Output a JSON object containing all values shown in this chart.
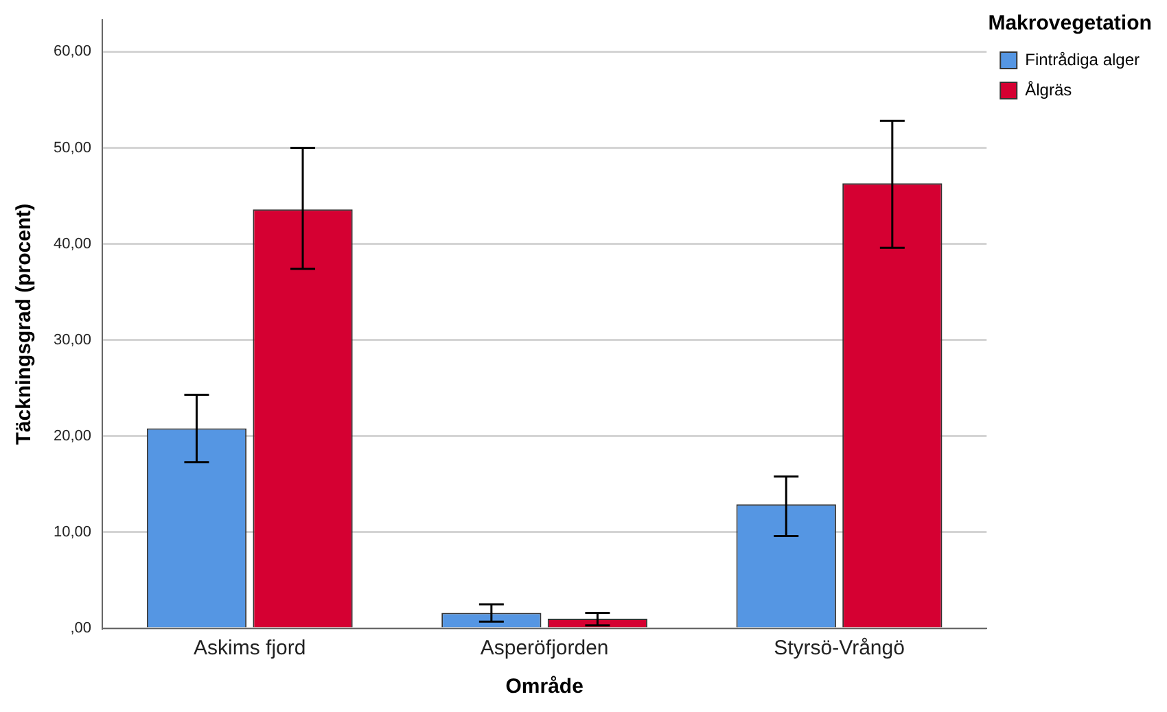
{
  "chart_data": {
    "type": "bar",
    "xlabel": "Område",
    "ylabel": "Täckningsgrad (procent)",
    "legend_title": "Makrovegetation",
    "categories": [
      "Askims fjord",
      "Asperöfjorden",
      "Styrsö-Vrångö"
    ],
    "series": [
      {
        "name": "Fintrådiga alger",
        "color": "#5596e3",
        "values": [
          20.8,
          1.6,
          12.9
        ],
        "errors": [
          [
            17.3,
            24.3
          ],
          [
            0.7,
            2.5
          ],
          [
            9.6,
            15.8
          ]
        ]
      },
      {
        "name": "Ålgräs",
        "color": "#d50032",
        "values": [
          43.6,
          1.0,
          46.3
        ],
        "errors": [
          [
            37.4,
            50.0
          ],
          [
            0.3,
            1.6
          ],
          [
            39.6,
            52.8
          ]
        ]
      }
    ],
    "ylim": [
      0,
      63.3
    ],
    "yticks": [
      {
        "value": 0,
        "label": ",00"
      },
      {
        "value": 10,
        "label": "10,00"
      },
      {
        "value": 20,
        "label": "20,00"
      },
      {
        "value": 30,
        "label": "30,00"
      },
      {
        "value": 40,
        "label": "40,00"
      },
      {
        "value": 50,
        "label": "50,00"
      },
      {
        "value": 60,
        "label": "60,00"
      }
    ],
    "grid": "y",
    "legend": "top right"
  }
}
